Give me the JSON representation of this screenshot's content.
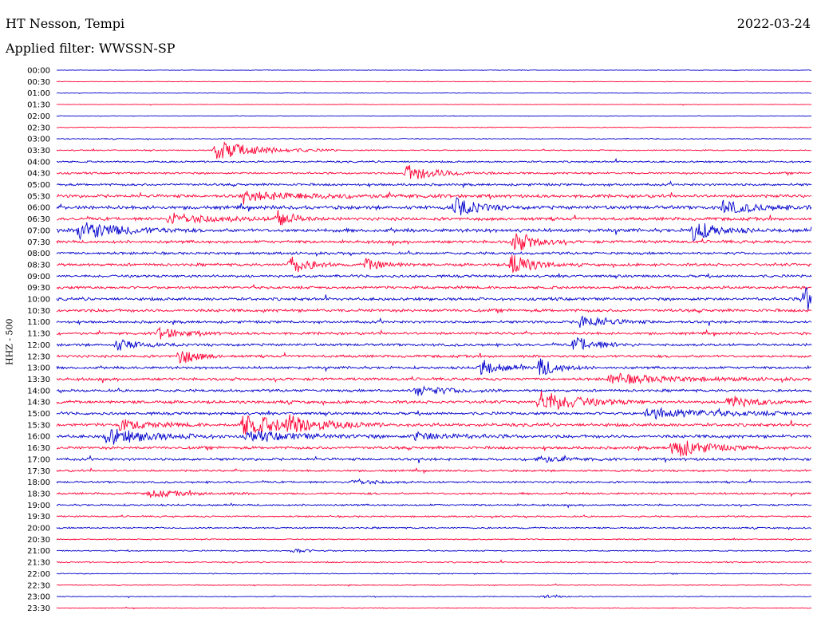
{
  "header": {
    "station": "HT Nesson, Tempi",
    "date": "2022-03-24",
    "filter": "Applied filter: WWSSN-SP"
  },
  "chart_data": {
    "type": "line",
    "title": "HT Nesson, Tempi",
    "subtitle": "Applied filter: WWSSN-SP",
    "ylabel": "HHZ - 500",
    "row_labels": [
      "00:00",
      "00:30",
      "01:00",
      "01:30",
      "02:00",
      "02:30",
      "03:00",
      "03:30",
      "04:00",
      "04:30",
      "05:00",
      "05:30",
      "06:00",
      "06:30",
      "07:00",
      "07:30",
      "08:00",
      "08:30",
      "09:00",
      "09:30",
      "10:00",
      "10:30",
      "11:00",
      "11:30",
      "12:00",
      "12:30",
      "13:00",
      "13:30",
      "14:00",
      "14:30",
      "15:00",
      "15:30",
      "16:00",
      "16:30",
      "17:00",
      "17:30",
      "18:00",
      "18:30",
      "19:00",
      "19:30",
      "20:00",
      "20:30",
      "21:00",
      "21:30",
      "22:00",
      "22:30",
      "23:00",
      "23:30"
    ],
    "minutes_per_row": 30,
    "colors": [
      "#0000cc",
      "#ff0033"
    ],
    "noise": [
      0.3,
      0.3,
      0.3,
      0.3,
      0.3,
      0.4,
      0.5,
      0.6,
      0.9,
      1.0,
      1.2,
      1.6,
      1.8,
      1.6,
      1.8,
      1.5,
      1.3,
      1.4,
      1.3,
      1.4,
      1.5,
      1.5,
      1.3,
      1.3,
      1.3,
      1.3,
      1.3,
      1.4,
      1.3,
      1.5,
      1.4,
      1.6,
      1.6,
      1.4,
      1.3,
      1.0,
      1.0,
      1.0,
      0.9,
      0.8,
      0.8,
      0.6,
      0.6,
      0.7,
      0.5,
      0.5,
      0.4,
      0.4
    ],
    "events": [
      {
        "row": 7,
        "minute": 6.3,
        "amp": 12,
        "dur": 1.6
      },
      {
        "row": 9,
        "minute": 13.9,
        "amp": 10,
        "dur": 1.2
      },
      {
        "row": 11,
        "minute": 7.4,
        "amp": 5,
        "dur": 3.0
      },
      {
        "row": 12,
        "minute": 15.8,
        "amp": 12,
        "dur": 0.8
      },
      {
        "row": 12,
        "minute": 26.5,
        "amp": 8,
        "dur": 1.2
      },
      {
        "row": 13,
        "minute": 4.5,
        "amp": 7,
        "dur": 1.6
      },
      {
        "row": 13,
        "minute": 8.8,
        "amp": 11,
        "dur": 0.6
      },
      {
        "row": 14,
        "minute": 0.9,
        "amp": 12,
        "dur": 1.5
      },
      {
        "row": 14,
        "minute": 25.3,
        "amp": 13,
        "dur": 0.8
      },
      {
        "row": 15,
        "minute": 18.2,
        "amp": 14,
        "dur": 0.7
      },
      {
        "row": 17,
        "minute": 9.3,
        "amp": 12,
        "dur": 0.7
      },
      {
        "row": 17,
        "minute": 12.3,
        "amp": 7,
        "dur": 0.7
      },
      {
        "row": 17,
        "minute": 18.1,
        "amp": 16,
        "dur": 0.7
      },
      {
        "row": 20,
        "minute": 29.7,
        "amp": 16,
        "dur": 1.0
      },
      {
        "row": 22,
        "minute": 20.8,
        "amp": 8,
        "dur": 1.0
      },
      {
        "row": 23,
        "minute": 4.1,
        "amp": 8,
        "dur": 0.8
      },
      {
        "row": 24,
        "minute": 2.4,
        "amp": 7,
        "dur": 0.8
      },
      {
        "row": 24,
        "minute": 20.6,
        "amp": 10,
        "dur": 0.8
      },
      {
        "row": 25,
        "minute": 4.9,
        "amp": 11,
        "dur": 0.6
      },
      {
        "row": 26,
        "minute": 16.9,
        "amp": 10,
        "dur": 0.7
      },
      {
        "row": 26,
        "minute": 19.2,
        "amp": 11,
        "dur": 0.7
      },
      {
        "row": 27,
        "minute": 22.0,
        "amp": 6,
        "dur": 2.5
      },
      {
        "row": 28,
        "minute": 14.3,
        "amp": 6,
        "dur": 1.2
      },
      {
        "row": 29,
        "minute": 19.2,
        "amp": 14,
        "dur": 1.4
      },
      {
        "row": 29,
        "minute": 26.7,
        "amp": 8,
        "dur": 0.9
      },
      {
        "row": 30,
        "minute": 23.5,
        "amp": 6,
        "dur": 3.0
      },
      {
        "row": 31,
        "minute": 2.5,
        "amp": 6,
        "dur": 1.2
      },
      {
        "row": 31,
        "minute": 7.4,
        "amp": 12,
        "dur": 2.0
      },
      {
        "row": 31,
        "minute": 9.2,
        "amp": 8,
        "dur": 1.0
      },
      {
        "row": 32,
        "minute": 2.0,
        "amp": 10,
        "dur": 1.6
      },
      {
        "row": 32,
        "minute": 7.6,
        "amp": 6,
        "dur": 2.0
      },
      {
        "row": 32,
        "minute": 14.2,
        "amp": 5,
        "dur": 1.4
      },
      {
        "row": 33,
        "minute": 24.5,
        "amp": 13,
        "dur": 1.2
      },
      {
        "row": 34,
        "minute": 19.1,
        "amp": 4,
        "dur": 1.0
      },
      {
        "row": 36,
        "minute": 11.8,
        "amp": 4,
        "dur": 0.8
      },
      {
        "row": 37,
        "minute": 3.7,
        "amp": 4,
        "dur": 1.4
      },
      {
        "row": 42,
        "minute": 9.4,
        "amp": 3,
        "dur": 0.6
      },
      {
        "row": 46,
        "minute": 19.3,
        "amp": 2,
        "dur": 0.8
      }
    ]
  }
}
